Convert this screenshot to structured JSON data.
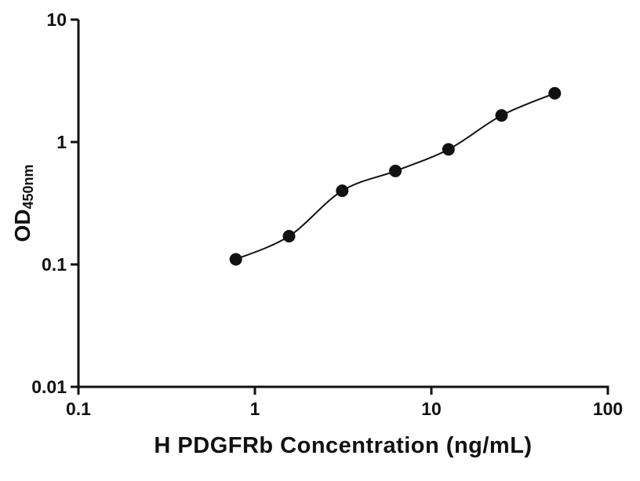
{
  "chart_data": {
    "type": "scatter",
    "title": "",
    "xlabel": "H PDGFRb Concentration (ng/mL)",
    "ylabel_main": "OD",
    "ylabel_sub": "450nm",
    "x_scale": "log",
    "y_scale": "log",
    "xlim": [
      0.1,
      100
    ],
    "ylim": [
      0.01,
      10
    ],
    "x_ticks": [
      0.1,
      1,
      10,
      100
    ],
    "x_tick_labels": [
      "0.1",
      "1",
      "10",
      "100"
    ],
    "y_ticks": [
      0.01,
      0.1,
      1,
      10
    ],
    "y_tick_labels": [
      "0.01",
      "0.1",
      "1",
      "10"
    ],
    "grid": false,
    "legend_position": "none",
    "points": {
      "x": [
        0.78,
        1.56,
        3.125,
        6.25,
        12.5,
        25,
        50
      ],
      "y": [
        0.11,
        0.17,
        0.4,
        0.58,
        0.87,
        1.65,
        2.5
      ]
    },
    "fit_line": true,
    "marker_color": "#111111",
    "marker_radius": 8,
    "line_color": "#111111",
    "axis_color": "#111111",
    "background_color": "#ffffff"
  }
}
